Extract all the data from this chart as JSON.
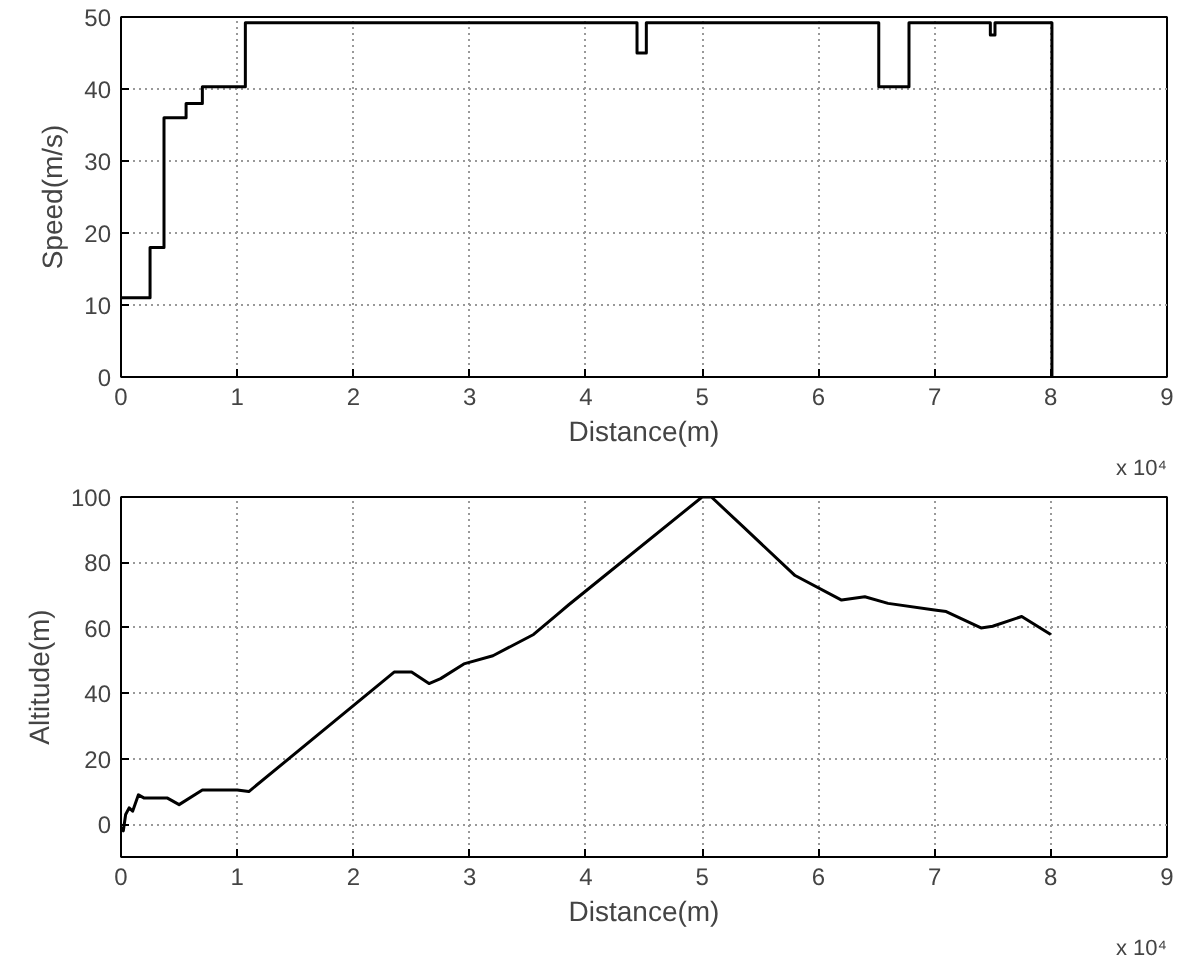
{
  "chart_data": [
    {
      "type": "step",
      "xlabel": "Distance(m)",
      "ylabel": "Speed(m/s)",
      "annotations": [
        "x 10⁴"
      ],
      "grid": true,
      "line_style": "solid",
      "xlim": [
        0,
        9
      ],
      "ylim": [
        0,
        50
      ],
      "xticks": [
        0,
        1,
        2,
        3,
        4,
        5,
        6,
        7,
        8,
        9
      ],
      "yticks": [
        0,
        10,
        20,
        30,
        40,
        50
      ],
      "series": [
        {
          "color": "#000000",
          "x": [
            0,
            0.25,
            0.37,
            0.56,
            0.7,
            1.07,
            4.44,
            4.52,
            6.52,
            6.78,
            7.48,
            7.52,
            8.01
          ],
          "values": [
            11,
            18,
            36,
            38,
            40.3,
            49.2,
            45,
            49.2,
            40.3,
            49.2,
            47.5,
            49.2,
            0
          ]
        }
      ]
    },
    {
      "type": "line",
      "xlabel": "Distance(m)",
      "ylabel": "Altitude(m)",
      "annotations": [
        "x 10⁴"
      ],
      "grid": true,
      "line_style": "solid",
      "xlim": [
        0,
        9
      ],
      "ylim": [
        -10,
        100
      ],
      "xticks": [
        0,
        1,
        2,
        3,
        4,
        5,
        6,
        7,
        8,
        9
      ],
      "yticks": [
        0,
        20,
        40,
        60,
        80,
        100
      ],
      "series": [
        {
          "color": "#000000",
          "x": [
            0,
            0.02,
            0.04,
            0.07,
            0.1,
            0.15,
            0.2,
            0.4,
            0.5,
            0.7,
            1.0,
            1.1,
            2.35,
            2.5,
            2.65,
            2.75,
            2.95,
            3.2,
            3.55,
            3.75,
            3.85,
            5.0,
            5.08,
            5.35,
            5.8,
            6.2,
            6.4,
            6.6,
            7.0,
            7.1,
            7.4,
            7.5,
            7.75,
            8.0
          ],
          "values": [
            -1,
            -2,
            3,
            5,
            4,
            9,
            8,
            8,
            6,
            10.5,
            10.5,
            10,
            46.5,
            46.5,
            43,
            44.5,
            49,
            51.5,
            58,
            64,
            67,
            100,
            100,
            91,
            76,
            68.5,
            69.5,
            67.5,
            65.5,
            65,
            60,
            60.5,
            63.5,
            58
          ]
        }
      ]
    }
  ]
}
